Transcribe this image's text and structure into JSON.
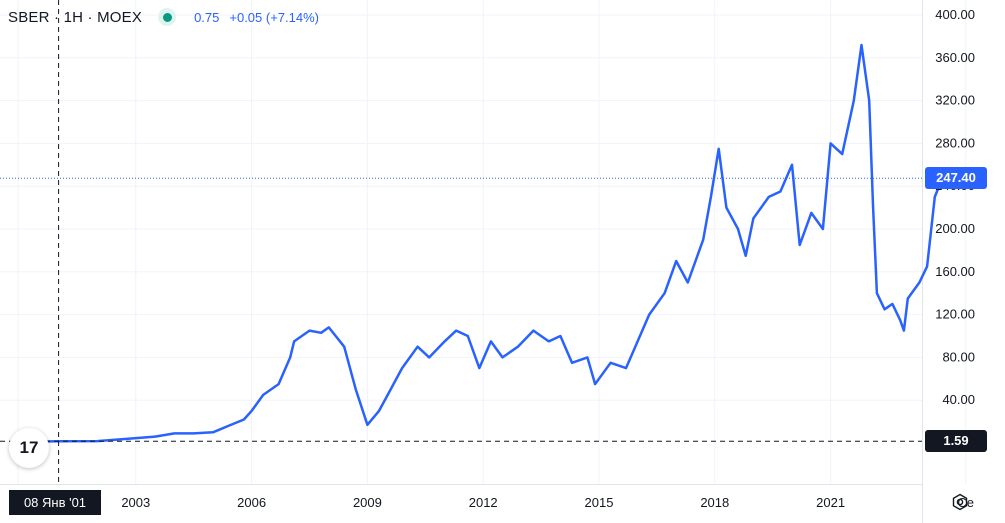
{
  "legend": {
    "symbol": "SBER · 1H · MOEX",
    "value": "0.75",
    "change": "+0.05 (+7.14%)"
  },
  "price_labels": {
    "last": "247.40",
    "crosshair": "1.59"
  },
  "crosshair_date": "08 Янв '01",
  "logo_text": "17",
  "colors": {
    "line": "#2962ff",
    "last_label": "#2962ff",
    "crosshair_label": "#131722",
    "grid": "#f0f3fa",
    "axis_text": "#131722",
    "status_dot": "#089981"
  },
  "icons": {
    "settings": "gear-icon",
    "status": "market-status-dot-icon",
    "logo": "tradingview-logo-icon"
  },
  "chart_data": {
    "type": "line",
    "title": "",
    "xlabel": "",
    "ylabel": "",
    "x_ticks": [
      "20",
      "2003",
      "2006",
      "2009",
      "2012",
      "2015",
      "2018",
      "2021",
      "Се"
    ],
    "y_ticks": [
      "40.00",
      "80.00",
      "120.00",
      "160.00",
      "200.00",
      "240.00",
      "280.00",
      "320.00",
      "360.00",
      "400.00"
    ],
    "ylim": [
      0,
      400
    ],
    "xlim": [
      2000.0,
      2026.4
    ],
    "grid": true,
    "series": [
      {
        "name": "",
        "points": [
          [
            2000.0,
            1.0
          ],
          [
            2001.0,
            1.6
          ],
          [
            2002.0,
            1.8
          ],
          [
            2002.8,
            4.0
          ],
          [
            2003.5,
            6.0
          ],
          [
            2004.0,
            9.0
          ],
          [
            2004.5,
            9.0
          ],
          [
            2005.0,
            10.0
          ],
          [
            2005.4,
            16.0
          ],
          [
            2005.8,
            22.0
          ],
          [
            2006.0,
            30.0
          ],
          [
            2006.3,
            45.0
          ],
          [
            2006.7,
            55.0
          ],
          [
            2007.0,
            80.0
          ],
          [
            2007.1,
            95.0
          ],
          [
            2007.5,
            105.0
          ],
          [
            2007.8,
            103.0
          ],
          [
            2008.0,
            108.0
          ],
          [
            2008.4,
            90.0
          ],
          [
            2008.7,
            50.0
          ],
          [
            2009.0,
            17.0
          ],
          [
            2009.3,
            30.0
          ],
          [
            2009.6,
            50.0
          ],
          [
            2009.9,
            70.0
          ],
          [
            2010.3,
            90.0
          ],
          [
            2010.6,
            80.0
          ],
          [
            2011.0,
            95.0
          ],
          [
            2011.3,
            105.0
          ],
          [
            2011.6,
            100.0
          ],
          [
            2011.9,
            70.0
          ],
          [
            2012.2,
            95.0
          ],
          [
            2012.5,
            80.0
          ],
          [
            2012.9,
            90.0
          ],
          [
            2013.3,
            105.0
          ],
          [
            2013.7,
            95.0
          ],
          [
            2014.0,
            100.0
          ],
          [
            2014.3,
            75.0
          ],
          [
            2014.7,
            80.0
          ],
          [
            2014.9,
            55.0
          ],
          [
            2015.3,
            75.0
          ],
          [
            2015.7,
            70.0
          ],
          [
            2016.0,
            95.0
          ],
          [
            2016.3,
            120.0
          ],
          [
            2016.7,
            140.0
          ],
          [
            2017.0,
            170.0
          ],
          [
            2017.3,
            150.0
          ],
          [
            2017.7,
            190.0
          ],
          [
            2017.9,
            230.0
          ],
          [
            2018.1,
            275.0
          ],
          [
            2018.3,
            220.0
          ],
          [
            2018.6,
            200.0
          ],
          [
            2018.8,
            175.0
          ],
          [
            2019.0,
            210.0
          ],
          [
            2019.4,
            230.0
          ],
          [
            2019.7,
            235.0
          ],
          [
            2020.0,
            260.0
          ],
          [
            2020.2,
            185.0
          ],
          [
            2020.5,
            215.0
          ],
          [
            2020.8,
            200.0
          ],
          [
            2021.0,
            280.0
          ],
          [
            2021.3,
            270.0
          ],
          [
            2021.6,
            320.0
          ],
          [
            2021.8,
            372.0
          ],
          [
            2022.0,
            320.0
          ],
          [
            2022.1,
            220.0
          ],
          [
            2022.2,
            140.0
          ],
          [
            2022.4,
            125.0
          ],
          [
            2022.6,
            130.0
          ],
          [
            2022.8,
            115.0
          ],
          [
            2022.9,
            105.0
          ],
          [
            2023.0,
            135.0
          ],
          [
            2023.3,
            150.0
          ],
          [
            2023.5,
            165.0
          ],
          [
            2023.7,
            230.0
          ],
          [
            2023.9,
            248.0
          ],
          [
            2024.05,
            247.4
          ]
        ]
      }
    ],
    "reference_lines": [
      {
        "label": "247.40",
        "value": 247.4,
        "style": "dotted"
      },
      {
        "label": "1.59",
        "value": 1.59,
        "style": "dashed"
      }
    ],
    "crosshair": {
      "x": 2001.0,
      "y": 1.59
    }
  }
}
